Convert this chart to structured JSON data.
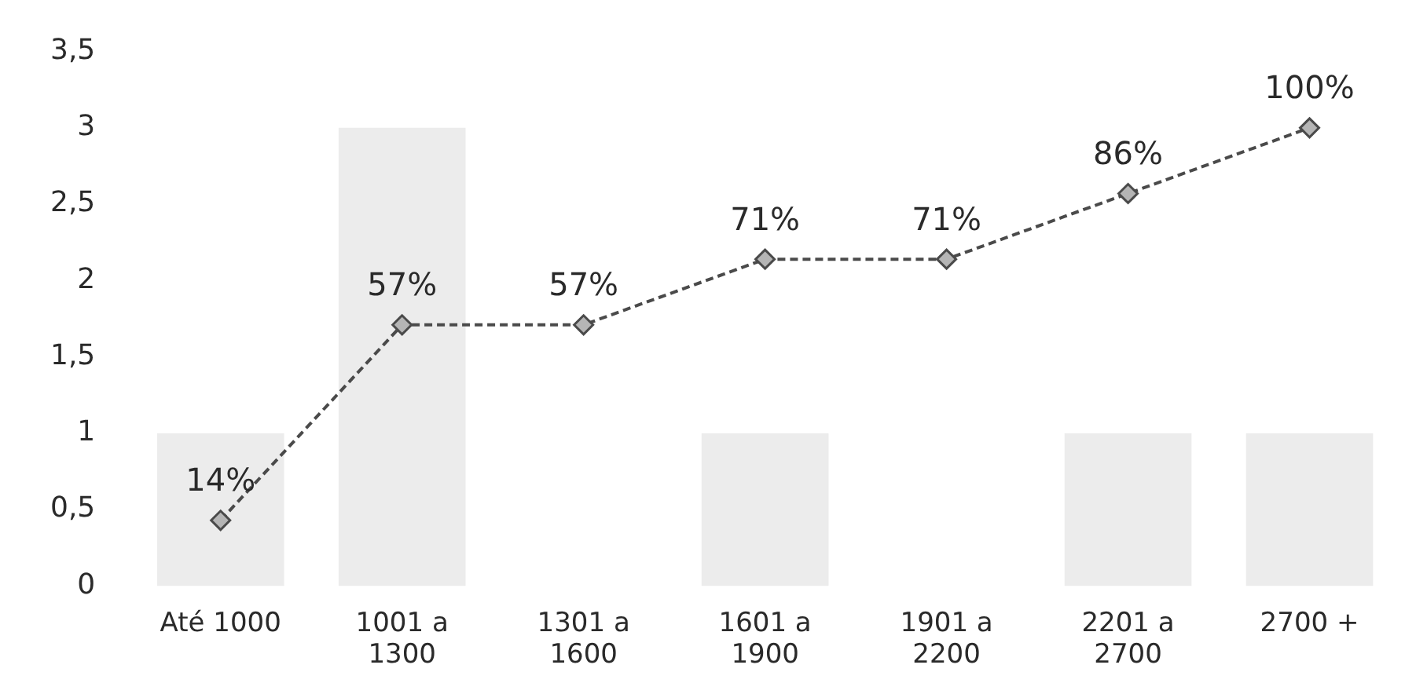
{
  "chart_data": {
    "type": "bar",
    "categories": [
      "Até 1000",
      "1001 a\n1300",
      "1301 a\n1600",
      "1601 a\n1900",
      "1901 a\n2200",
      "2201 a\n2700",
      "2700 +"
    ],
    "series": [
      {
        "color": "#ececec",
        "values": [
          1,
          3,
          0,
          1,
          0,
          1,
          1
        ]
      },
      {
        "type": "line",
        "color": "#4a4a4a",
        "values": [
          0.43,
          1.71,
          1.71,
          2.14,
          2.14,
          2.57,
          3.0
        ]
      }
    ],
    "annotations": [
      {
        "text": "14%",
        "x": "Até 1000",
        "y": 0.43
      },
      {
        "text": "57%",
        "x": "1001 a\n1300",
        "y": 1.71
      },
      {
        "text": "57%",
        "x": "1301 a\n1600",
        "y": 1.71
      },
      {
        "text": "71%",
        "x": "1601 a\n1900",
        "y": 2.14
      },
      {
        "text": "71%",
        "x": "1901 a\n2200",
        "y": 2.14
      },
      {
        "text": "86%",
        "x": "2201 a\n2700",
        "y": 2.57
      },
      {
        "text": "100%",
        "x": "2700 +",
        "y": 3.0
      }
    ],
    "ylim": [
      0,
      3.5
    ],
    "yticks": [
      0,
      {
        "value": 0.5,
        "label": "0,5"
      },
      1,
      {
        "value": 1.5,
        "label": "1,5"
      },
      2,
      {
        "value": 2.5,
        "label": "2,5"
      },
      3,
      {
        "value": 3.5,
        "label": "3,5"
      }
    ],
    "grid": false,
    "legend": false,
    "marker": "diamond",
    "line_style": "dashed"
  }
}
